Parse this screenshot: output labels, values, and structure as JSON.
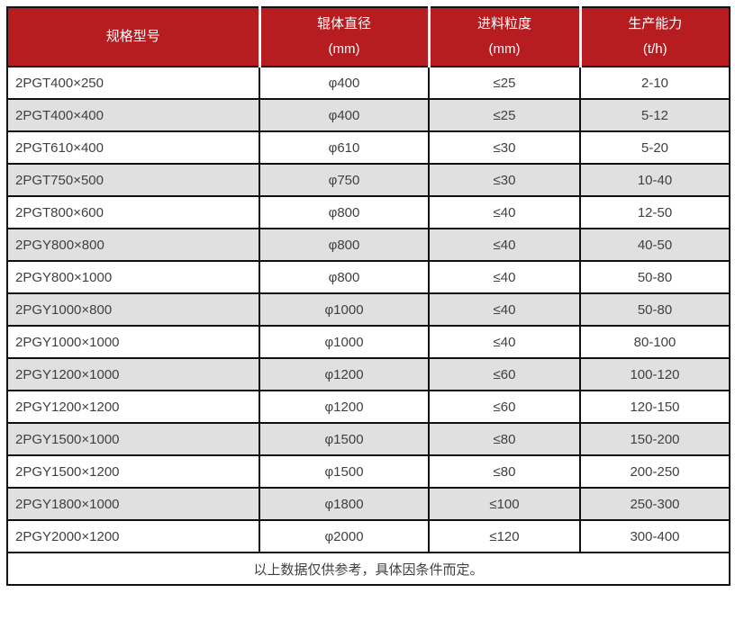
{
  "table": {
    "columns": [
      {
        "line1": "规格型号",
        "line2": ""
      },
      {
        "line1": "辊体直径",
        "line2": "(mm)"
      },
      {
        "line1": "进料粒度",
        "line2": "(mm)"
      },
      {
        "line1": "生产能力",
        "line2": "(t/h)"
      }
    ],
    "rows": [
      {
        "model": "2PGT400×250",
        "diameter": "φ400",
        "feed_size": "≤25",
        "capacity": "2-10"
      },
      {
        "model": "2PGT400×400",
        "diameter": "φ400",
        "feed_size": "≤25",
        "capacity": "5-12"
      },
      {
        "model": "2PGT610×400",
        "diameter": "φ610",
        "feed_size": "≤30",
        "capacity": "5-20"
      },
      {
        "model": "2PGT750×500",
        "diameter": "φ750",
        "feed_size": "≤30",
        "capacity": "10-40"
      },
      {
        "model": "2PGT800×600",
        "diameter": "φ800",
        "feed_size": "≤40",
        "capacity": "12-50"
      },
      {
        "model": "2PGY800×800",
        "diameter": "φ800",
        "feed_size": "≤40",
        "capacity": "40-50"
      },
      {
        "model": "2PGY800×1000",
        "diameter": "φ800",
        "feed_size": "≤40",
        "capacity": "50-80"
      },
      {
        "model": "2PGY1000×800",
        "diameter": "φ1000",
        "feed_size": "≤40",
        "capacity": "50-80"
      },
      {
        "model": "2PGY1000×1000",
        "diameter": "φ1000",
        "feed_size": "≤40",
        "capacity": "80-100"
      },
      {
        "model": "2PGY1200×1000",
        "diameter": "φ1200",
        "feed_size": "≤60",
        "capacity": "100-120"
      },
      {
        "model": "2PGY1200×1200",
        "diameter": "φ1200",
        "feed_size": "≤60",
        "capacity": "120-150"
      },
      {
        "model": "2PGY1500×1000",
        "diameter": "φ1500",
        "feed_size": "≤80",
        "capacity": "150-200"
      },
      {
        "model": "2PGY1500×1200",
        "diameter": "φ1500",
        "feed_size": "≤80",
        "capacity": "200-250"
      },
      {
        "model": "2PGY1800×1000",
        "diameter": "φ1800",
        "feed_size": "≤100",
        "capacity": "250-300"
      },
      {
        "model": "2PGY2000×1200",
        "diameter": "φ2000",
        "feed_size": "≤120",
        "capacity": "300-400"
      }
    ],
    "footer_note": "以上数据仅供参考，具体因条件而定。"
  },
  "colors": {
    "header_background": "#b71c20",
    "header_text": "#ffffff",
    "alt_row_background": "#e0e0e0",
    "border": "#111111",
    "body_text": "#404040"
  }
}
